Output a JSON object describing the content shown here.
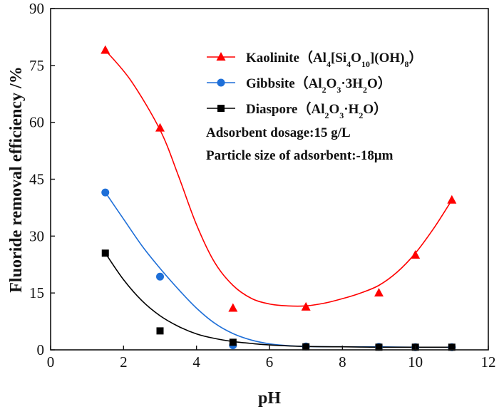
{
  "chart_data": {
    "type": "scatter",
    "title": "",
    "xlabel": "pH",
    "ylabel": "Fluoride removal efficiency /%",
    "xlim": [
      0,
      12
    ],
    "ylim": [
      0,
      90
    ],
    "xticks": [
      0,
      2,
      4,
      6,
      8,
      10,
      12
    ],
    "yticks": [
      0,
      15,
      30,
      45,
      60,
      75,
      90
    ],
    "grid": false,
    "legend_position": "top-right",
    "series": [
      {
        "name": "Kaolinite",
        "formula": {
          "a": "（Al",
          "a_sub": "4",
          "b": "[Si",
          "b_sub": "4",
          "c": "O",
          "c_sub": "10",
          "d": "](OH)",
          "d_sub": "8",
          "e": "）"
        },
        "color": "#ff0000",
        "marker": "triangle",
        "x": [
          1.5,
          3,
          5,
          7,
          9,
          10,
          11
        ],
        "y": [
          79,
          58.5,
          11,
          11.3,
          15,
          25,
          39.5
        ],
        "fit": [
          [
            1.5,
            79
          ],
          [
            2.2,
            71
          ],
          [
            3,
            58
          ],
          [
            3.5,
            46
          ],
          [
            4,
            33
          ],
          [
            4.5,
            23
          ],
          [
            5,
            17
          ],
          [
            5.5,
            13.6
          ],
          [
            6,
            12.1
          ],
          [
            6.5,
            11.6
          ],
          [
            7,
            11.6
          ],
          [
            7.5,
            12.3
          ],
          [
            8,
            13.5
          ],
          [
            8.5,
            15
          ],
          [
            9,
            17
          ],
          [
            9.5,
            20.5
          ],
          [
            10,
            25.5
          ],
          [
            10.5,
            32
          ],
          [
            11,
            39.5
          ]
        ]
      },
      {
        "name": "Gibbsite",
        "formula": {
          "a": "（Al",
          "a_sub": "2",
          "b": "O",
          "b_sub": "3",
          "c": "·3H",
          "c_sub": "2",
          "d": "O）"
        },
        "color": "#1e6fd8",
        "marker": "circle",
        "x": [
          1.5,
          3,
          5,
          7,
          9,
          10,
          11
        ],
        "y": [
          41.5,
          19.3,
          1.2,
          0.9,
          0.8,
          0.7,
          0.7
        ],
        "fit": [
          [
            1.5,
            41.5
          ],
          [
            2,
            34.5
          ],
          [
            2.5,
            27.5
          ],
          [
            3,
            21.5
          ],
          [
            3.5,
            16
          ],
          [
            4,
            11
          ],
          [
            4.5,
            7
          ],
          [
            5,
            4.3
          ],
          [
            5.5,
            2.6
          ],
          [
            6,
            1.6
          ],
          [
            6.5,
            1.1
          ],
          [
            7,
            0.9
          ],
          [
            8,
            0.8
          ],
          [
            9,
            0.8
          ],
          [
            10,
            0.7
          ],
          [
            11,
            0.7
          ]
        ]
      },
      {
        "name": "Diaspore",
        "formula": {
          "a": "（Al",
          "a_sub": "2",
          "b": "O",
          "b_sub": "3",
          "c": "·H",
          "c_sub": "2",
          "d": "O）"
        },
        "color": "#000000",
        "marker": "square",
        "x": [
          1.5,
          3,
          5,
          7,
          9,
          10,
          11
        ],
        "y": [
          25.5,
          5,
          2,
          0.8,
          0.7,
          0.7,
          0.7
        ],
        "fit": [
          [
            1.5,
            25.5
          ],
          [
            2,
            18.5
          ],
          [
            2.5,
            13
          ],
          [
            3,
            9
          ],
          [
            3.5,
            6.2
          ],
          [
            4,
            4.2
          ],
          [
            4.5,
            3
          ],
          [
            5,
            2.2
          ],
          [
            5.5,
            1.7
          ],
          [
            6,
            1.3
          ],
          [
            7,
            0.9
          ],
          [
            8,
            0.8
          ],
          [
            9,
            0.7
          ],
          [
            10,
            0.7
          ],
          [
            11,
            0.7
          ]
        ]
      }
    ],
    "annotations": [
      "Adsorbent dosage:15 g/L",
      "Particle size of adsorbent:-18μm"
    ]
  }
}
